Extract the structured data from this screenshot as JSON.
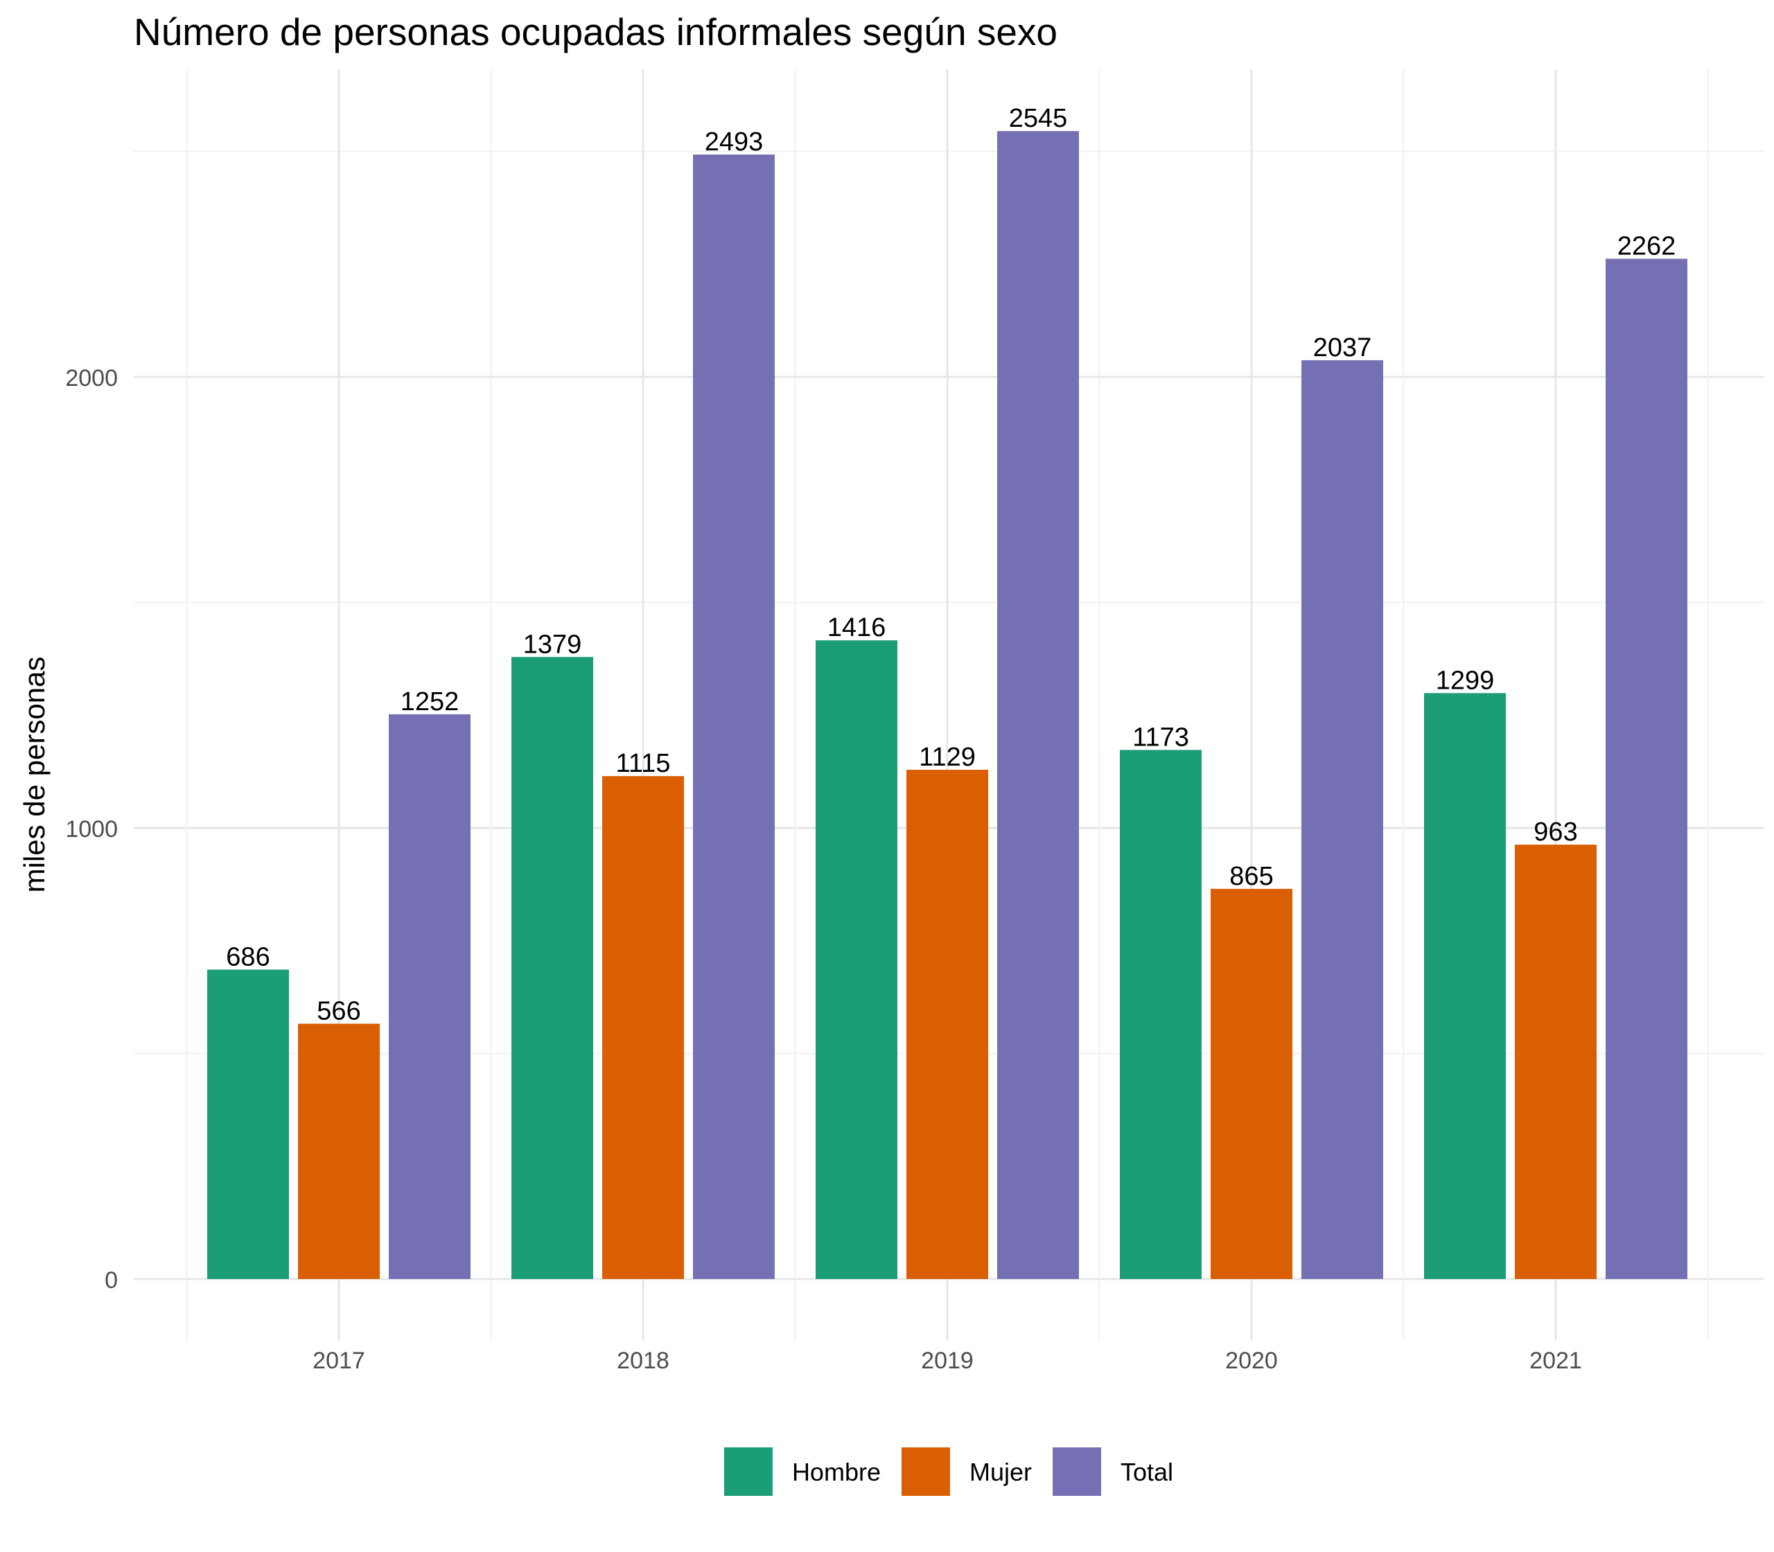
{
  "chart_data": {
    "type": "bar",
    "title": "Número de personas ocupadas informales según sexo",
    "xlabel": "",
    "ylabel": "miles de personas",
    "categories": [
      "2017",
      "2018",
      "2019",
      "2020",
      "2021"
    ],
    "series": [
      {
        "name": "Hombre",
        "color": "#1B9E77",
        "values": [
          686,
          1379,
          1416,
          1173,
          1299
        ]
      },
      {
        "name": "Mujer",
        "color": "#D95F02",
        "values": [
          566,
          1115,
          1129,
          865,
          963
        ]
      },
      {
        "name": "Total",
        "color": "#7570B3",
        "values": [
          1252,
          2493,
          2545,
          2037,
          2262
        ]
      }
    ],
    "yticks": [
      0,
      1000,
      2000
    ],
    "ylim": [
      0,
      2545
    ],
    "grid": true,
    "legend_position": "bottom",
    "data_labels": true
  }
}
